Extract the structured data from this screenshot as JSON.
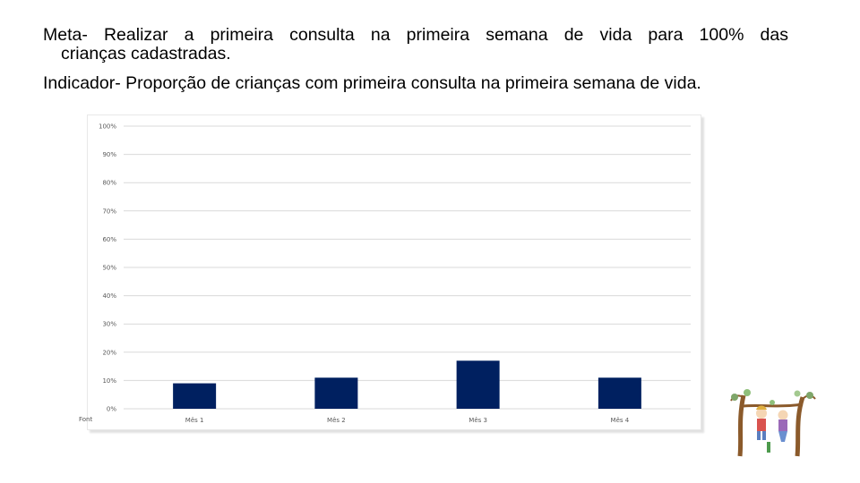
{
  "heading": {
    "meta_line1": "Meta- Realizar a primeira consulta na primeira semana de vida para 100% das",
    "meta_line2": "crianças cadastradas.",
    "indicator": "Indicador- Proporção de crianças com primeira consulta na primeira semana de vida."
  },
  "footer": {
    "source_prefix": "Font"
  },
  "colors": {
    "bar": "#002060",
    "grid": "#d9d9d9",
    "text": "#595959"
  },
  "chart_data": {
    "type": "bar",
    "categories": [
      "Mês 1",
      "Mês 2",
      "Mês 3",
      "Mês 4"
    ],
    "values": [
      9,
      11,
      17,
      11
    ],
    "y_unit": "%",
    "ylim": [
      0,
      100
    ],
    "y_ticks": [
      "0%",
      "10%",
      "20%",
      "30%",
      "40%",
      "50%",
      "60%",
      "70%",
      "80%",
      "90%",
      "100%"
    ],
    "title": "",
    "xlabel": "",
    "ylabel": "",
    "grid": true,
    "legend": "none"
  }
}
